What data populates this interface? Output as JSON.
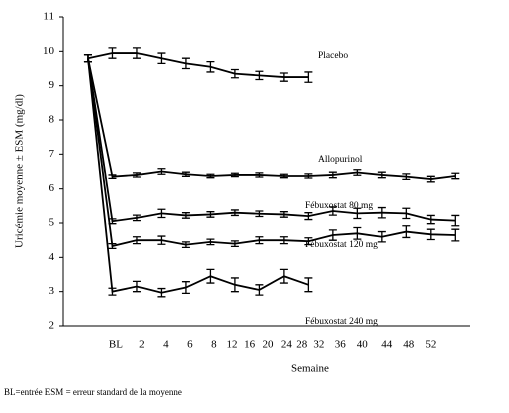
{
  "chart_data": {
    "type": "line",
    "ylabel": "Uricémie moyenne ± ESM (mg/dl)",
    "xlabel": "Semaine",
    "footnote": "BL=entrée ESM = erreur standard de la moyenne",
    "x": [
      0,
      1,
      2,
      3,
      4,
      5,
      6,
      7,
      8,
      9,
      10,
      11,
      12,
      13,
      14,
      15
    ],
    "xlim": [
      -1.02,
      15.6
    ],
    "xticks": [
      {
        "value": 1.14,
        "label": "BL"
      },
      {
        "value": 2.2,
        "label": "2"
      },
      {
        "value": 3.18,
        "label": "4"
      },
      {
        "value": 4.16,
        "label": "6"
      },
      {
        "value": 5.14,
        "label": "8"
      },
      {
        "value": 5.88,
        "label": "12"
      },
      {
        "value": 6.6,
        "label": "16"
      },
      {
        "value": 7.35,
        "label": "20"
      },
      {
        "value": 8.1,
        "label": "24"
      },
      {
        "value": 8.73,
        "label": "28"
      },
      {
        "value": 9.43,
        "label": "32"
      },
      {
        "value": 10.3,
        "label": "36"
      },
      {
        "value": 11.2,
        "label": "40"
      },
      {
        "value": 12.2,
        "label": "44"
      },
      {
        "value": 13.1,
        "label": "48"
      },
      {
        "value": 14.0,
        "label": "52"
      }
    ],
    "ylim": [
      2,
      11
    ],
    "yticks": [
      2,
      3,
      4,
      5,
      6,
      7,
      8,
      9,
      10,
      11
    ],
    "series": [
      {
        "name": "Placebo",
        "color": "#000000",
        "values": [
          9.8,
          9.95,
          9.95,
          9.8,
          9.65,
          9.55,
          9.35,
          9.3,
          9.25,
          9.25,
          null,
          null,
          null,
          null,
          null,
          null
        ],
        "errors": [
          0.1,
          0.15,
          0.15,
          0.15,
          0.15,
          0.15,
          0.12,
          0.12,
          0.12,
          0.15,
          null,
          null,
          null,
          null,
          null,
          null
        ]
      },
      {
        "name": "Allopurinol",
        "color": "#000000",
        "values": [
          9.8,
          6.35,
          6.4,
          6.5,
          6.42,
          6.37,
          6.4,
          6.4,
          6.37,
          6.37,
          6.4,
          6.47,
          6.4,
          6.35,
          6.28,
          6.37
        ],
        "errors": [
          0.1,
          0.05,
          0.06,
          0.08,
          0.06,
          0.05,
          0.05,
          0.06,
          0.05,
          0.06,
          0.08,
          0.08,
          0.08,
          0.08,
          0.08,
          0.08
        ]
      },
      {
        "name": "Fébuxostat 80 mg",
        "color": "#000000",
        "values": [
          9.8,
          5.05,
          5.15,
          5.28,
          5.22,
          5.25,
          5.3,
          5.27,
          5.25,
          5.2,
          5.35,
          5.28,
          5.3,
          5.28,
          5.1,
          5.07
        ],
        "errors": [
          0.1,
          0.07,
          0.08,
          0.12,
          0.08,
          0.08,
          0.08,
          0.08,
          0.08,
          0.1,
          0.12,
          0.15,
          0.15,
          0.15,
          0.12,
          0.15
        ]
      },
      {
        "name": "Fébuxostat 120 mg",
        "color": "#000000",
        "values": [
          9.8,
          4.33,
          4.5,
          4.5,
          4.37,
          4.45,
          4.4,
          4.5,
          4.5,
          4.47,
          4.65,
          4.7,
          4.6,
          4.75,
          4.67,
          4.65
        ],
        "errors": [
          0.1,
          0.07,
          0.1,
          0.12,
          0.08,
          0.08,
          0.08,
          0.1,
          0.1,
          0.1,
          0.15,
          0.17,
          0.15,
          0.17,
          0.15,
          0.17
        ]
      },
      {
        "name": "Fébuxostat 240 mg",
        "color": "#000000",
        "values": [
          9.8,
          3.0,
          3.15,
          2.97,
          3.12,
          3.45,
          3.2,
          3.05,
          3.45,
          3.2,
          null,
          null,
          null,
          null,
          null,
          null
        ],
        "errors": [
          0.1,
          0.1,
          0.15,
          0.12,
          0.17,
          0.2,
          0.2,
          0.15,
          0.2,
          0.2,
          null,
          null,
          null,
          null,
          null,
          null
        ]
      }
    ]
  }
}
